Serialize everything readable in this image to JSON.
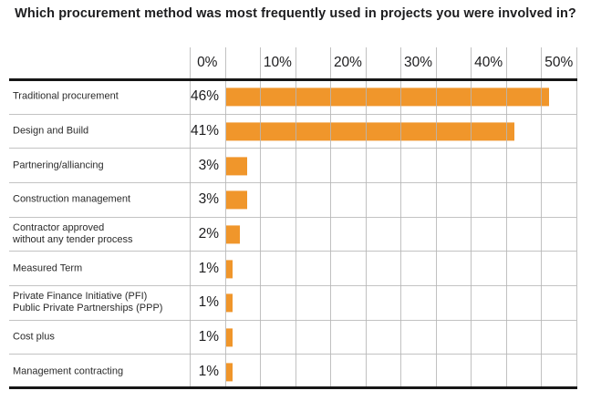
{
  "title": "Which procurement method was most frequently used in projects you were involved in?",
  "chart_data": {
    "type": "bar",
    "orientation": "horizontal",
    "title": "Which procurement method was most frequently used in projects you were involved in?",
    "categories": [
      "Traditional procurement",
      "Design and Build",
      "Partnering/alliancing",
      "Construction management",
      "Contractor approved without any tender process",
      "Measured Term",
      "Private Finance Initiative (PFI) Public Private Partnerships (PPP)",
      "Cost plus",
      "Management contracting"
    ],
    "category_lines": [
      [
        "Traditional procurement"
      ],
      [
        "Design and Build"
      ],
      [
        "Partnering/alliancing"
      ],
      [
        "Construction management"
      ],
      [
        "Contractor approved",
        "without any tender process"
      ],
      [
        "Measured Term"
      ],
      [
        "Private Finance Initiative (PFI)",
        "Public Private Partnerships (PPP)"
      ],
      [
        "Cost plus"
      ],
      [
        "Management contracting"
      ]
    ],
    "values": [
      46,
      41,
      3,
      3,
      2,
      1,
      1,
      1,
      1
    ],
    "value_labels": [
      "46%",
      "41%",
      "3%",
      "3%",
      "2%",
      "1%",
      "1%",
      "1%",
      "1%"
    ],
    "x_ticks": [
      "0%",
      "10%",
      "20%",
      "30%",
      "40%",
      "50%"
    ],
    "x_tick_values": [
      0,
      10,
      20,
      30,
      40,
      50
    ],
    "xlim": [
      0,
      50
    ],
    "grid_step_percent": 5,
    "grid": "on",
    "legend": "none",
    "bar_color": "#f0962b",
    "grid_color": "#b6b6b6",
    "axis_line_color": "#161616",
    "text_color": "#1d1d1f"
  }
}
